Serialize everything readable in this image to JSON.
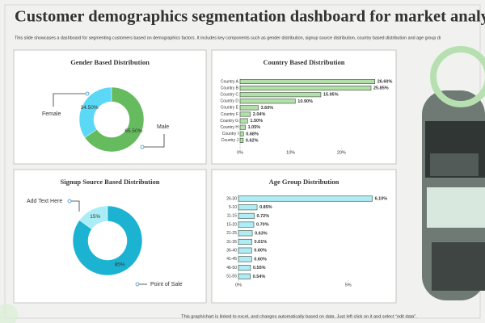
{
  "title": "Customer demographics segmentation dashboard for market analysis",
  "subtitle": "This slide showcases a dashboard for segmenting customers based on demographics factors. It includes key components such as gender distribution, signup source distribution, country based distribution and age group di",
  "footer": "This graph/chart is linked to excel, and changes automatically based on data. Just left click on it and select “edit data”.",
  "chart_data": [
    {
      "type": "donut",
      "title": "Gender Based Distribution",
      "categories": [
        "Female",
        "Male"
      ],
      "values": [
        34.5,
        65.5
      ],
      "value_labels": [
        "34.50%",
        "65.50%"
      ],
      "colors": [
        "#5ad8f5",
        "#66bb5e"
      ]
    },
    {
      "type": "bar",
      "orientation": "horizontal",
      "title": "Country  Based Distribution",
      "categories": [
        "Country A",
        "Country B",
        "Country C",
        "Country D",
        "Country E",
        "Country F",
        "Country G",
        "Country H",
        "Country I",
        "Country J"
      ],
      "values": [
        26.6,
        25.85,
        15.95,
        10.9,
        3.6,
        2.04,
        1.5,
        1.05,
        0.68,
        0.62
      ],
      "value_labels": [
        "26.60%",
        "25.85%",
        "15.95%",
        "10.90%",
        "3.60%",
        "2.04%",
        "1.50%",
        "1.05%",
        "0.68%",
        "0.62%"
      ],
      "color": "#b3dfaa",
      "xlim": [
        0,
        30
      ],
      "xticks": [
        {
          "value": 0,
          "label": "0%"
        },
        {
          "value": 10,
          "label": "10%"
        },
        {
          "value": 20,
          "label": "20%"
        }
      ]
    },
    {
      "type": "donut",
      "title": "Signup  Source Based Distribution",
      "categories": [
        "Add Text Here",
        "Point of Sale"
      ],
      "values": [
        15,
        85
      ],
      "value_labels": [
        "15%",
        "85%"
      ],
      "colors": [
        "#a9eef6",
        "#1cb3d3"
      ]
    },
    {
      "type": "bar",
      "orientation": "horizontal",
      "title": "Age Group  Distribution",
      "categories": [
        "26-30",
        "5-10",
        "11-15",
        "15-20",
        "21-25",
        "31-35",
        "36-40",
        "41-45",
        "46-50",
        "51-55"
      ],
      "values": [
        6.1,
        0.85,
        0.72,
        0.7,
        0.63,
        0.61,
        0.6,
        0.6,
        0.55,
        0.54
      ],
      "value_labels": [
        "6.10%",
        "0.85%",
        "0.72%",
        "0.70%",
        "0.63%",
        "0.61%",
        "0.60%",
        "0.60%",
        "0.55%",
        "0.54%"
      ],
      "color": "#aeecf6",
      "xlim": [
        0,
        7
      ],
      "xticks": [
        {
          "value": 0,
          "label": "0%"
        },
        {
          "value": 5,
          "label": "5%"
        }
      ]
    }
  ]
}
